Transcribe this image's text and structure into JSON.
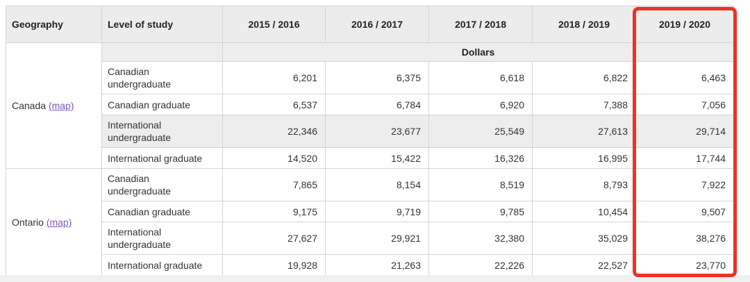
{
  "colors": {
    "highlight_red": "#ee3124",
    "link_purple": "#7d59b8",
    "header_bg": "#ececec",
    "shade_bg": "#ededed",
    "border": "#d4d4d4"
  },
  "table": {
    "columns": [
      {
        "label": "Geography"
      },
      {
        "label": "Level of study"
      },
      {
        "label": "2015 / 2016"
      },
      {
        "label": "2016 / 2017"
      },
      {
        "label": "2017 / 2018"
      },
      {
        "label": "2018 / 2019"
      },
      {
        "label": "2019 / 2020",
        "highlighted": true
      }
    ],
    "unit_label": "Dollars",
    "groups": [
      {
        "geography": "Canada",
        "map_link_label": "(map)",
        "rows": [
          {
            "level_lines": [
              "Canadian",
              "undergraduate"
            ],
            "shaded": false,
            "values": [
              "6,201",
              "6,375",
              "6,618",
              "6,822",
              "6,463"
            ]
          },
          {
            "level_lines": [
              "Canadian graduate"
            ],
            "shaded": false,
            "values": [
              "6,537",
              "6,784",
              "6,920",
              "7,388",
              "7,056"
            ]
          },
          {
            "level_lines": [
              "International",
              "undergraduate"
            ],
            "shaded": true,
            "values": [
              "22,346",
              "23,677",
              "25,549",
              "27,613",
              "29,714"
            ]
          },
          {
            "level_lines": [
              "International graduate"
            ],
            "shaded": false,
            "values": [
              "14,520",
              "15,422",
              "16,326",
              "16,995",
              "17,744"
            ]
          }
        ]
      },
      {
        "geography": "Ontario",
        "map_link_label": "(map)",
        "rows": [
          {
            "level_lines": [
              "Canadian",
              "undergraduate"
            ],
            "shaded": false,
            "values": [
              "7,865",
              "8,154",
              "8,519",
              "8,793",
              "7,922"
            ]
          },
          {
            "level_lines": [
              "Canadian graduate"
            ],
            "shaded": false,
            "values": [
              "9,175",
              "9,719",
              "9,785",
              "10,454",
              "9,507"
            ]
          },
          {
            "level_lines": [
              "International",
              "undergraduate"
            ],
            "shaded": false,
            "values": [
              "27,627",
              "29,921",
              "32,380",
              "35,029",
              "38,276"
            ]
          },
          {
            "level_lines": [
              "International graduate"
            ],
            "shaded": false,
            "values": [
              "19,928",
              "21,263",
              "22,226",
              "22,527",
              "23,770"
            ]
          }
        ]
      }
    ]
  }
}
